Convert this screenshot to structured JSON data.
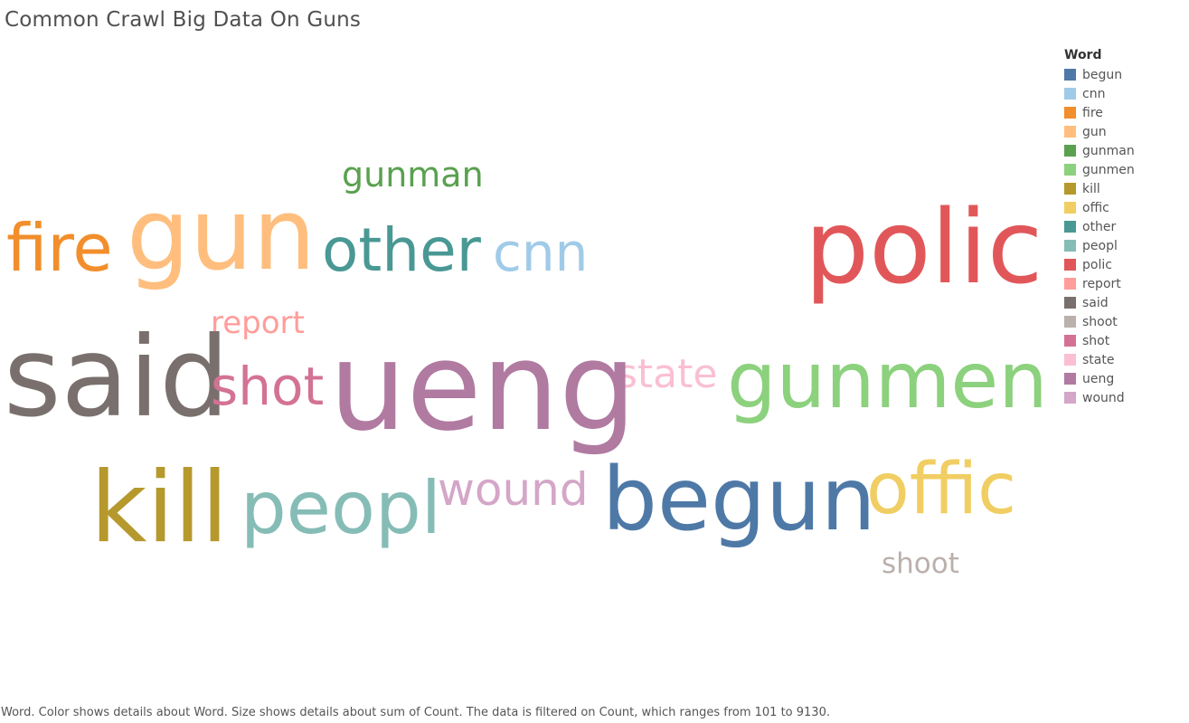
{
  "chart_data": {
    "type": "word-cloud",
    "title": "Common Crawl Big Data On Guns",
    "legend_title": "Word",
    "legend_placement": "right",
    "words": [
      {
        "word": "begun",
        "color": "#4e79a7"
      },
      {
        "word": "cnn",
        "color": "#a0cbe8"
      },
      {
        "word": "fire",
        "color": "#f28e2b"
      },
      {
        "word": "gun",
        "color": "#ffbe7d"
      },
      {
        "word": "gunman",
        "color": "#59a14f"
      },
      {
        "word": "gunmen",
        "color": "#8cd17d"
      },
      {
        "word": "kill",
        "color": "#b6992d"
      },
      {
        "word": "offic",
        "color": "#f1ce63"
      },
      {
        "word": "other",
        "color": "#499894"
      },
      {
        "word": "peopl",
        "color": "#86bcb6"
      },
      {
        "word": "polic",
        "color": "#e15759"
      },
      {
        "word": "report",
        "color": "#ff9d9a"
      },
      {
        "word": "said",
        "color": "#79706e"
      },
      {
        "word": "shoot",
        "color": "#bab0ac"
      },
      {
        "word": "shot",
        "color": "#d37295"
      },
      {
        "word": "state",
        "color": "#fabfd2"
      },
      {
        "word": "ueng",
        "color": "#b07aa1"
      },
      {
        "word": "wound",
        "color": "#d4a6c8"
      }
    ],
    "caption": "Word.  Color shows details about Word.  Size shows details about sum of Count. The data is filtered on Count, which ranges from 101 to 9130."
  }
}
